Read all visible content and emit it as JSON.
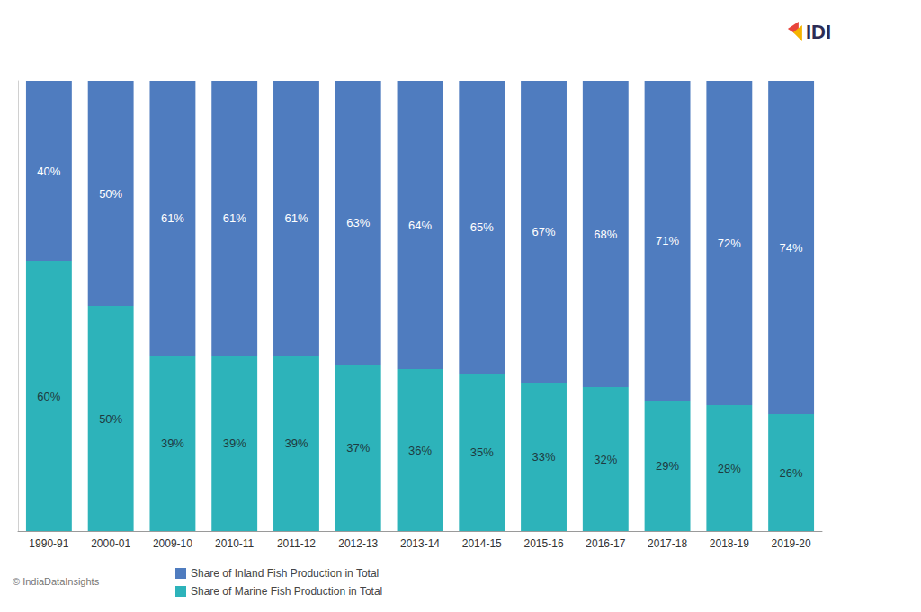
{
  "chart_data": {
    "type": "bar",
    "stacked": true,
    "data_labels": true,
    "tick_labels": "x",
    "grid": false,
    "legend": "bottom",
    "categories": [
      "1990-91",
      "2000-01",
      "2009-10",
      "2010-11",
      "2011-12",
      "2012-13",
      "2013-14",
      "2014-15",
      "2015-16",
      "2016-17",
      "2017-18",
      "2018-19",
      "2019-20"
    ],
    "ylim": [
      0,
      100
    ],
    "series": [
      {
        "name": "Share of Inland Fish Production in Total",
        "color": "#4f7cbf",
        "values": [
          40,
          50,
          61,
          61,
          61,
          63,
          64,
          65,
          67,
          68,
          71,
          72,
          74
        ],
        "value_labels": [
          "40%",
          "50%",
          "61%",
          "61%",
          "61%",
          "63%",
          "64%",
          "65%",
          "67%",
          "68%",
          "71%",
          "72%",
          "74%"
        ]
      },
      {
        "name": "Share of Marine Fish Production in Total",
        "color": "#2db3ba",
        "values": [
          60,
          50,
          39,
          39,
          39,
          37,
          36,
          35,
          33,
          32,
          29,
          28,
          26
        ],
        "value_labels": [
          "60%",
          "50%",
          "39%",
          "39%",
          "39%",
          "37%",
          "36%",
          "35%",
          "33%",
          "32%",
          "29%",
          "28%",
          "26%"
        ]
      }
    ],
    "annotations": [
      "IDI",
      "© IndiaDataInsights"
    ]
  }
}
